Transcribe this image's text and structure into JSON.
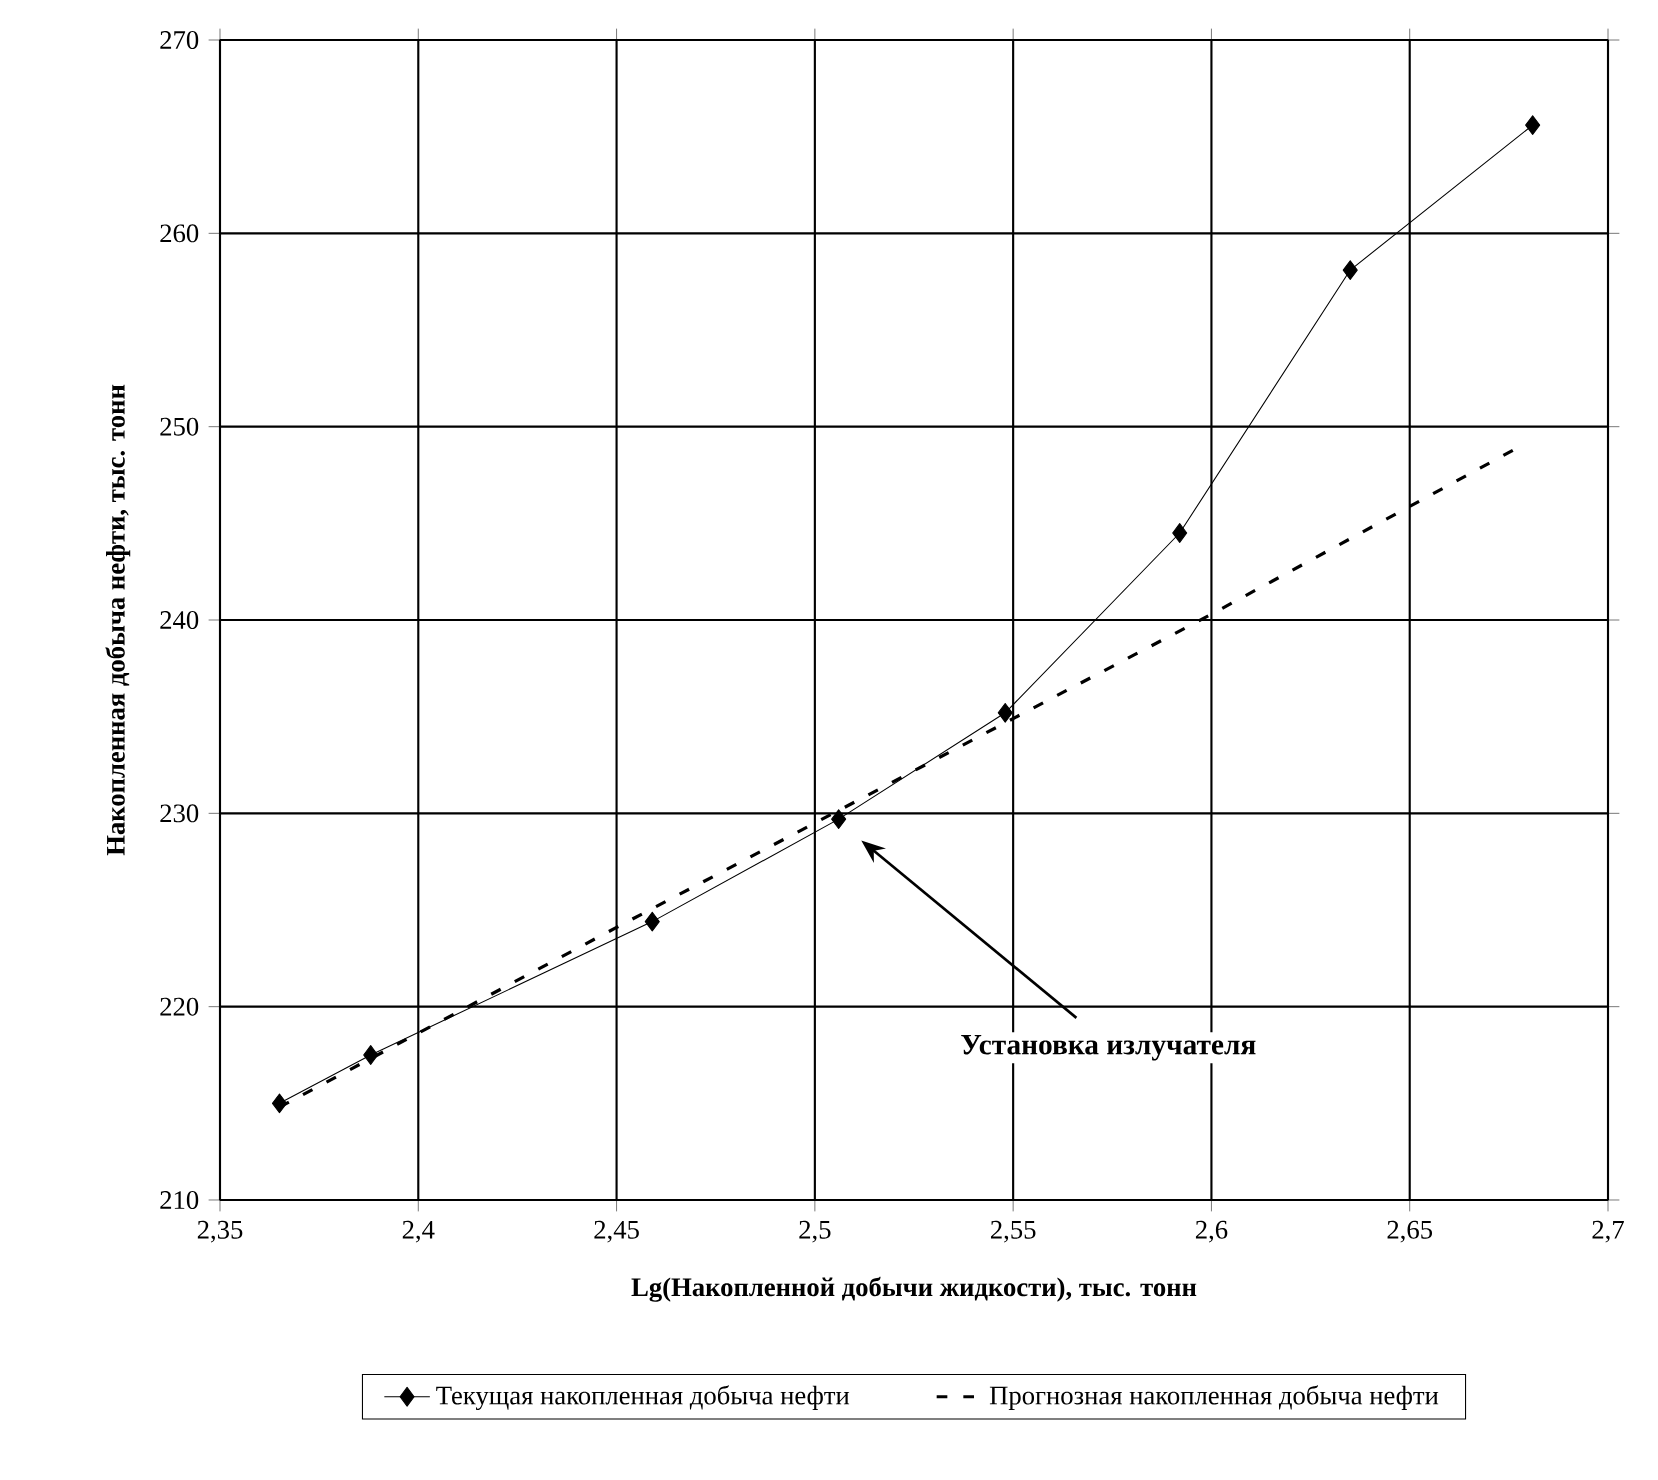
{
  "chart_data": {
    "type": "line",
    "xlabel": "Lg(Накопленной добычи жидкости), тыс. тонн",
    "ylabel": "Накопленная добыча нефти, тыс. тонн",
    "xlim": [
      2.35,
      2.7
    ],
    "ylim": [
      210,
      270
    ],
    "xticks": [
      {
        "value": 2.35,
        "label": "2,35"
      },
      {
        "value": 2.4,
        "label": "2,4"
      },
      {
        "value": 2.45,
        "label": "2,45"
      },
      {
        "value": 2.5,
        "label": "2,5"
      },
      {
        "value": 2.55,
        "label": "2,55"
      },
      {
        "value": 2.6,
        "label": "2,6"
      },
      {
        "value": 2.65,
        "label": "2,65"
      },
      {
        "value": 2.7,
        "label": "2,7"
      }
    ],
    "yticks": [
      210,
      220,
      230,
      240,
      250,
      260,
      270
    ],
    "grid": true,
    "legend": "bottom",
    "series": [
      {
        "name": "Текущая накопленная добыча нефти",
        "color": "#000000",
        "marker": "diamond",
        "line_style": "solid",
        "x": [
          2.365,
          2.388,
          2.459,
          2.506,
          2.548,
          2.592,
          2.635,
          2.681
        ],
        "values": [
          215.0,
          217.5,
          224.4,
          229.7,
          235.2,
          244.5,
          258.1,
          265.6
        ]
      },
      {
        "name": "Прогнозная накопленная добыча нефти",
        "color": "#000000",
        "marker": "none",
        "line_style": "dashed",
        "x": [
          2.365,
          2.45,
          2.5,
          2.6,
          2.678
        ],
        "values": [
          214.8,
          224.1,
          229.5,
          240.3,
          249.0
        ]
      }
    ],
    "annotations": [
      "Установка излучателя"
    ]
  }
}
